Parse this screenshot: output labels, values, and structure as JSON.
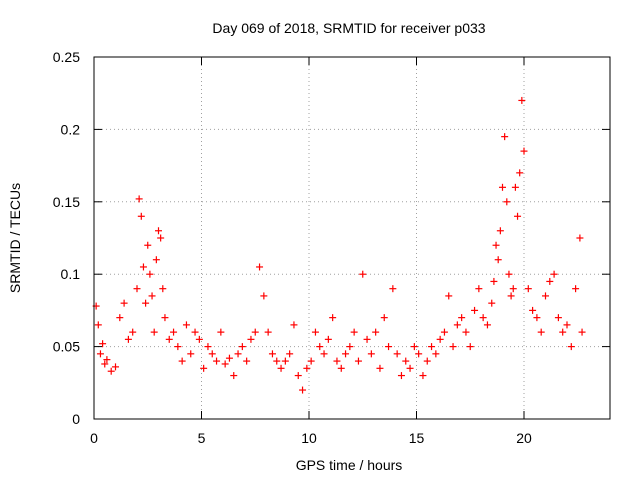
{
  "chart_data": {
    "type": "scatter",
    "title": "Day 069 of 2018, SRMTID for receiver p033",
    "xlabel": "GPS time / hours",
    "ylabel": "SRMTID / TECUs",
    "xlim": [
      0,
      24
    ],
    "ylim": [
      0,
      0.25
    ],
    "xticks": [
      0,
      5,
      10,
      15,
      20
    ],
    "yticks": [
      0,
      0.05,
      0.1,
      0.15,
      0.2,
      0.25
    ],
    "xtick_labels": [
      "0",
      "5",
      "10",
      "15",
      "20"
    ],
    "ytick_labels": [
      "0",
      "0.05",
      "0.1",
      "0.15",
      "0.2",
      "0.25"
    ],
    "grid": true,
    "marker": "plus",
    "color": "#ff0000",
    "series": [
      {
        "name": "SRMTID",
        "x": [
          0.1,
          0.2,
          0.3,
          0.4,
          0.5,
          0.6,
          0.8,
          1.0,
          1.2,
          1.4,
          1.6,
          1.8,
          2.0,
          2.1,
          2.2,
          2.3,
          2.4,
          2.5,
          2.6,
          2.7,
          2.8,
          2.9,
          3.0,
          3.1,
          3.2,
          3.3,
          3.5,
          3.7,
          3.9,
          4.1,
          4.3,
          4.5,
          4.7,
          4.9,
          5.1,
          5.3,
          5.5,
          5.7,
          5.9,
          6.1,
          6.3,
          6.5,
          6.7,
          6.9,
          7.1,
          7.3,
          7.5,
          7.7,
          7.9,
          8.1,
          8.3,
          8.5,
          8.7,
          8.9,
          9.1,
          9.3,
          9.5,
          9.7,
          9.9,
          10.1,
          10.3,
          10.5,
          10.7,
          10.9,
          11.1,
          11.3,
          11.5,
          11.7,
          11.9,
          12.1,
          12.3,
          12.5,
          12.7,
          12.9,
          13.1,
          13.3,
          13.5,
          13.7,
          13.9,
          14.1,
          14.3,
          14.5,
          14.7,
          14.9,
          15.1,
          15.3,
          15.5,
          15.7,
          15.9,
          16.1,
          16.3,
          16.5,
          16.7,
          16.9,
          17.1,
          17.3,
          17.5,
          17.7,
          17.9,
          18.1,
          18.3,
          18.5,
          18.6,
          18.7,
          18.8,
          18.9,
          19.0,
          19.1,
          19.2,
          19.3,
          19.4,
          19.5,
          19.6,
          19.7,
          19.8,
          19.9,
          20.0,
          20.2,
          20.4,
          20.6,
          20.8,
          21.0,
          21.2,
          21.4,
          21.6,
          21.8,
          22.0,
          22.2,
          22.4,
          22.6,
          22.7
        ],
        "y": [
          0.078,
          0.065,
          0.045,
          0.052,
          0.038,
          0.041,
          0.033,
          0.036,
          0.07,
          0.08,
          0.055,
          0.06,
          0.09,
          0.152,
          0.14,
          0.105,
          0.08,
          0.12,
          0.1,
          0.085,
          0.06,
          0.11,
          0.13,
          0.125,
          0.09,
          0.07,
          0.055,
          0.06,
          0.05,
          0.04,
          0.065,
          0.045,
          0.06,
          0.055,
          0.035,
          0.05,
          0.045,
          0.04,
          0.06,
          0.038,
          0.042,
          0.03,
          0.045,
          0.05,
          0.04,
          0.055,
          0.06,
          0.105,
          0.085,
          0.06,
          0.045,
          0.04,
          0.035,
          0.04,
          0.045,
          0.065,
          0.03,
          0.02,
          0.035,
          0.04,
          0.06,
          0.05,
          0.045,
          0.055,
          0.07,
          0.04,
          0.035,
          0.045,
          0.05,
          0.06,
          0.04,
          0.1,
          0.055,
          0.045,
          0.06,
          0.035,
          0.07,
          0.05,
          0.09,
          0.045,
          0.03,
          0.04,
          0.035,
          0.05,
          0.045,
          0.03,
          0.04,
          0.05,
          0.045,
          0.055,
          0.06,
          0.085,
          0.05,
          0.065,
          0.07,
          0.06,
          0.05,
          0.075,
          0.09,
          0.07,
          0.065,
          0.08,
          0.095,
          0.12,
          0.11,
          0.13,
          0.16,
          0.195,
          0.15,
          0.1,
          0.085,
          0.09,
          0.16,
          0.14,
          0.17,
          0.22,
          0.185,
          0.09,
          0.075,
          0.07,
          0.06,
          0.085,
          0.095,
          0.1,
          0.07,
          0.06,
          0.065,
          0.05,
          0.09,
          0.125,
          0.06
        ]
      }
    ]
  }
}
